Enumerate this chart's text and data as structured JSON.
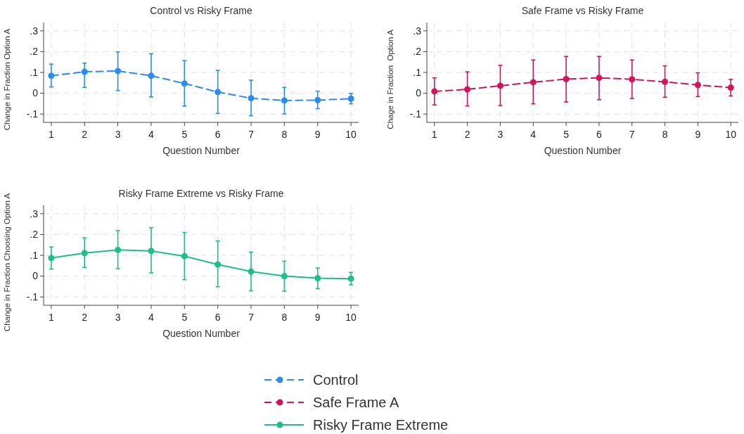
{
  "chart_data": [
    {
      "type": "line",
      "title": "Control vs Risky Frame",
      "xlabel": "Question Number",
      "ylabel": "Change in Fraction Option A",
      "x": [
        1,
        2,
        3,
        4,
        5,
        6,
        7,
        8,
        9,
        10
      ],
      "xlim": [
        0.77,
        10.23
      ],
      "xticks": [
        1,
        2,
        3,
        4,
        5,
        6,
        7,
        8,
        9,
        10
      ],
      "ylim": [
        -0.14,
        0.34
      ],
      "yticks": [
        {
          "value": -0.1,
          "label": "-.1"
        },
        {
          "value": 0,
          "label": "0"
        },
        {
          "value": 0.1,
          "label": ".1"
        },
        {
          "value": 0.2,
          "label": ".2"
        },
        {
          "value": 0.3,
          "label": ".3"
        }
      ],
      "grid": true,
      "marker": "circle",
      "legend": "bottom",
      "series": [
        {
          "name": "Control",
          "color": "#2b8cf0",
          "line_style": "dashed",
          "values": [
            0.084,
            0.103,
            0.107,
            0.084,
            0.047,
            0.006,
            -0.024,
            -0.035,
            -0.033,
            -0.026
          ],
          "errors": [
            [
              0.03,
              0.14
            ],
            [
              0.028,
              0.145
            ],
            [
              0.013,
              0.199
            ],
            [
              -0.018,
              0.19
            ],
            [
              -0.062,
              0.157
            ],
            [
              -0.097,
              0.11
            ],
            [
              -0.108,
              0.063
            ],
            [
              -0.099,
              0.028
            ],
            [
              -0.074,
              0.01
            ],
            [
              -0.051,
              -0.001
            ]
          ]
        }
      ]
    },
    {
      "type": "line",
      "title": "Safe Frame vs Risky Frame",
      "xlabel": "Question Number",
      "ylabel": "Chage in Fraction  Option A",
      "x": [
        1,
        2,
        3,
        4,
        5,
        6,
        7,
        8,
        9,
        10
      ],
      "xlim": [
        0.77,
        10.23
      ],
      "xticks": [
        1,
        2,
        3,
        4,
        5,
        6,
        7,
        8,
        9,
        10
      ],
      "ylim": [
        -0.14,
        0.34
      ],
      "yticks": [
        {
          "value": -0.1,
          "label": "-.1"
        },
        {
          "value": 0,
          "label": "0"
        },
        {
          "value": 0.1,
          "label": ".1"
        },
        {
          "value": 0.2,
          "label": ".2"
        },
        {
          "value": 0.3,
          "label": ".3"
        }
      ],
      "grid": true,
      "marker": "circle",
      "legend": "bottom",
      "series": [
        {
          "name": "Safe Frame A",
          "color": "#d4145a",
          "line_style": "dashed",
          "values": [
            0.009,
            0.019,
            0.036,
            0.053,
            0.068,
            0.074,
            0.067,
            0.055,
            0.04,
            0.027
          ],
          "errors": [
            [
              -0.056,
              0.074
            ],
            [
              -0.061,
              0.103
            ],
            [
              -0.059,
              0.134
            ],
            [
              -0.051,
              0.16
            ],
            [
              -0.042,
              0.177
            ],
            [
              -0.031,
              0.177
            ],
            [
              -0.025,
              0.16
            ],
            [
              -0.019,
              0.132
            ],
            [
              -0.016,
              0.098
            ],
            [
              -0.013,
              0.067
            ]
          ]
        }
      ]
    },
    {
      "type": "line",
      "title": "Risky Frame Extreme vs Risky Frame",
      "xlabel": "Question Number",
      "ylabel": "Change in Fraction Choosing Option A",
      "x": [
        1,
        2,
        3,
        4,
        5,
        6,
        7,
        8,
        9,
        10
      ],
      "xlim": [
        0.77,
        10.23
      ],
      "xticks": [
        1,
        2,
        3,
        4,
        5,
        6,
        7,
        8,
        9,
        10
      ],
      "ylim": [
        -0.14,
        0.34
      ],
      "yticks": [
        {
          "value": -0.1,
          "label": "-.1"
        },
        {
          "value": 0,
          "label": "0"
        },
        {
          "value": 0.1,
          "label": ".1"
        },
        {
          "value": 0.2,
          "label": ".2"
        },
        {
          "value": 0.3,
          "label": ".3"
        }
      ],
      "grid": true,
      "marker": "circle",
      "legend": "bottom",
      "series": [
        {
          "name": "Risky Frame Extreme",
          "color": "#1dbf87",
          "line_style": "solid",
          "values": [
            0.087,
            0.111,
            0.126,
            0.121,
            0.096,
            0.056,
            0.022,
            0,
            -0.01,
            -0.012
          ],
          "errors": [
            [
              0.034,
              0.14
            ],
            [
              0.042,
              0.184
            ],
            [
              0.036,
              0.219
            ],
            [
              0.016,
              0.233
            ],
            [
              -0.017,
              0.21
            ],
            [
              -0.051,
              0.169
            ],
            [
              -0.071,
              0.116
            ],
            [
              -0.072,
              0.072
            ],
            [
              -0.06,
              0.039
            ],
            [
              -0.042,
              0.018
            ]
          ]
        }
      ]
    }
  ]
}
